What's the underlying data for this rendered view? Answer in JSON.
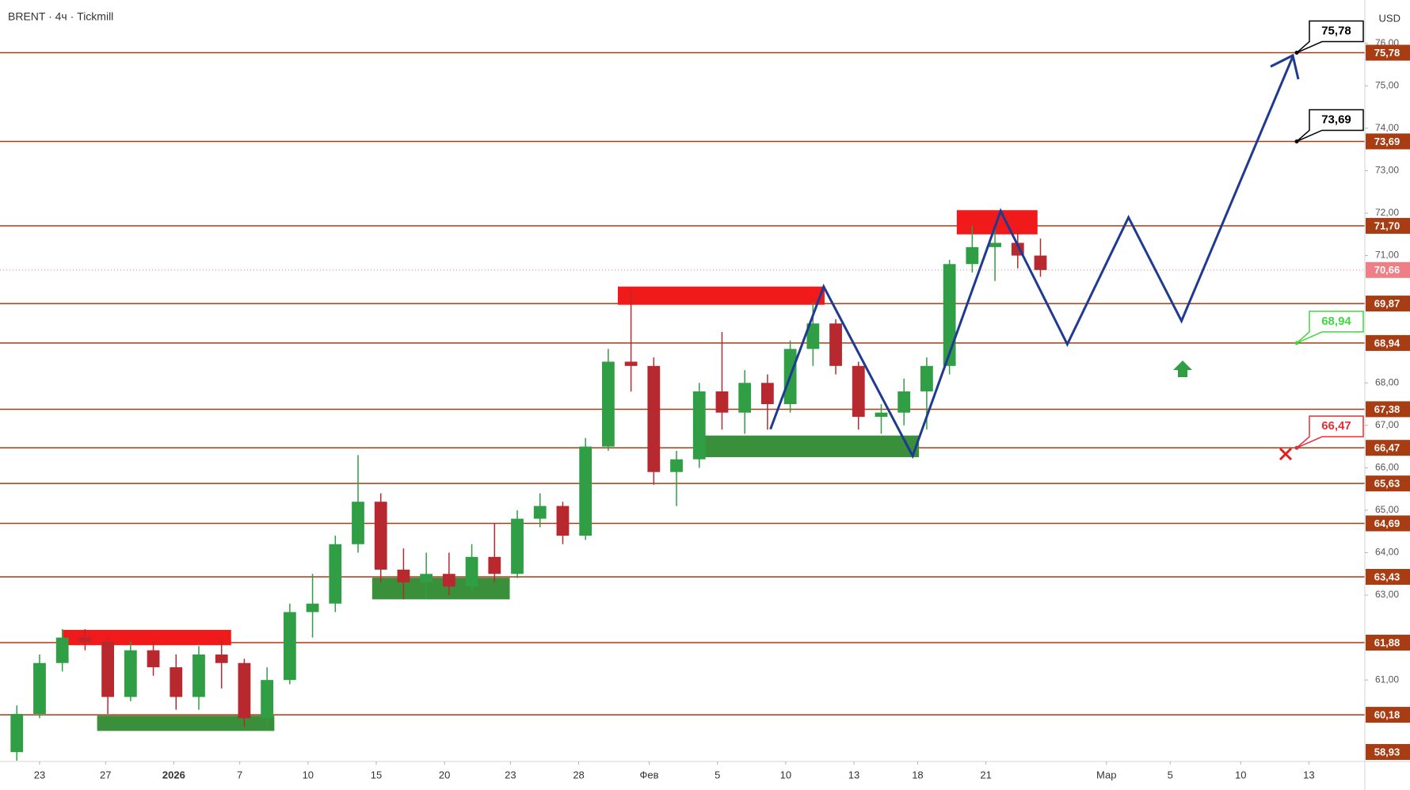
{
  "chart_data": {
    "type": "candlestick",
    "title": "BRENT · 4ч · Tickmill",
    "y_label": "USD",
    "xlim": [
      -1.74,
      58.26
    ],
    "ylim": [
      59.08,
      76.91
    ],
    "xticks": [
      {
        "value": 0,
        "label": "23"
      },
      {
        "value": 2.9,
        "label": "27"
      },
      {
        "value": 5.9,
        "label": "2026"
      },
      {
        "value": 8.8,
        "label": "7"
      },
      {
        "value": 11.8,
        "label": "10"
      },
      {
        "value": 14.8,
        "label": "15"
      },
      {
        "value": 17.8,
        "label": "20"
      },
      {
        "value": 20.7,
        "label": "23"
      },
      {
        "value": 23.7,
        "label": "28"
      },
      {
        "value": 26.8,
        "label": "Фев"
      },
      {
        "value": 29.8,
        "label": "5"
      },
      {
        "value": 32.8,
        "label": "10"
      },
      {
        "value": 35.8,
        "label": "13"
      },
      {
        "value": 38.6,
        "label": "18"
      },
      {
        "value": 41.6,
        "label": "21"
      },
      {
        "value": 46.9,
        "label": "Мар"
      },
      {
        "value": 49.7,
        "label": "5"
      },
      {
        "value": 52.8,
        "label": "10"
      },
      {
        "value": 55.8,
        "label": "13"
      }
    ],
    "yticks": [
      {
        "value": 76,
        "label": "76,00"
      },
      {
        "value": 75,
        "label": "75,00"
      },
      {
        "value": 74,
        "label": "74,00"
      },
      {
        "value": 73,
        "label": "73,00"
      },
      {
        "value": 72,
        "label": "72,00"
      },
      {
        "value": 71,
        "label": "71,00"
      },
      {
        "value": 68,
        "label": "68,00"
      },
      {
        "value": 67,
        "label": "67,00"
      },
      {
        "value": 66,
        "label": "66,00"
      },
      {
        "value": 65,
        "label": "65,00"
      },
      {
        "value": 64,
        "label": "64,00"
      },
      {
        "value": 63,
        "label": "63,00"
      },
      {
        "value": 61,
        "label": "61,00"
      }
    ],
    "up_color": "#2f9e44",
    "down_color": "#b8292f",
    "level_color": "#a83c12",
    "series": {
      "x": [
        -1,
        0,
        1,
        2,
        3,
        4,
        5,
        6,
        7,
        8,
        9,
        10,
        11,
        12,
        13,
        14,
        15,
        16,
        17,
        18,
        19,
        20,
        21,
        22,
        23,
        24,
        25,
        26,
        27,
        28,
        29,
        30,
        31,
        32,
        33,
        34,
        35,
        36,
        37,
        38,
        39,
        40,
        41,
        42,
        43,
        44
      ],
      "open": [
        59.3,
        60.2,
        61.4,
        62.0,
        61.9,
        60.6,
        61.7,
        61.3,
        60.6,
        61.6,
        61.4,
        60.1,
        61.0,
        62.6,
        62.8,
        64.2,
        65.2,
        63.6,
        63.3,
        63.5,
        63.2,
        63.9,
        63.5,
        64.8,
        65.1,
        64.4,
        66.5,
        68.5,
        68.4,
        65.9,
        66.2,
        67.8,
        67.3,
        68.0,
        67.5,
        68.8,
        69.4,
        68.4,
        67.2,
        67.3,
        67.8,
        68.4,
        70.8,
        71.2,
        71.3,
        71.0
      ],
      "high": [
        60.4,
        61.6,
        62.2,
        62.2,
        62.0,
        61.9,
        61.9,
        61.6,
        61.8,
        62.0,
        61.5,
        61.3,
        62.8,
        63.5,
        64.4,
        66.3,
        65.4,
        64.1,
        64.0,
        64.0,
        64.2,
        64.7,
        65.0,
        65.4,
        65.2,
        66.7,
        68.8,
        70.2,
        68.6,
        66.4,
        68.0,
        69.2,
        68.3,
        68.2,
        69.0,
        69.9,
        69.5,
        68.5,
        67.5,
        68.1,
        68.6,
        70.9,
        71.7,
        71.7,
        71.6,
        71.4
      ],
      "low": [
        59.1,
        60.1,
        61.2,
        61.7,
        60.2,
        60.5,
        61.1,
        60.3,
        60.3,
        60.8,
        59.9,
        59.9,
        60.9,
        62.0,
        62.6,
        64.0,
        63.3,
        62.9,
        62.9,
        63.0,
        63.1,
        63.3,
        63.4,
        64.6,
        64.2,
        64.3,
        66.4,
        67.8,
        65.6,
        65.1,
        66.0,
        66.9,
        66.8,
        66.9,
        67.3,
        68.4,
        68.2,
        66.9,
        66.8,
        67.0,
        66.9,
        68.2,
        70.6,
        70.4,
        70.7,
        70.5
      ],
      "close": [
        60.2,
        61.4,
        62.0,
        61.9,
        60.6,
        61.7,
        61.3,
        60.6,
        61.6,
        61.4,
        60.1,
        61.0,
        62.6,
        62.8,
        64.2,
        65.2,
        63.6,
        63.3,
        63.5,
        63.2,
        63.9,
        63.5,
        64.8,
        65.1,
        64.4,
        66.5,
        68.5,
        68.4,
        65.9,
        66.2,
        67.8,
        67.3,
        68.0,
        67.5,
        68.8,
        69.4,
        68.4,
        67.2,
        67.3,
        67.8,
        68.4,
        70.8,
        71.2,
        71.3,
        71.0,
        70.66
      ]
    },
    "levels": [
      {
        "value": 75.78,
        "label": "75,78"
      },
      {
        "value": 73.69,
        "label": "73,69"
      },
      {
        "value": 71.7,
        "label": "71,70"
      },
      {
        "value": 69.87,
        "label": "69,87"
      },
      {
        "value": 68.94,
        "label": "68,94"
      },
      {
        "value": 67.38,
        "label": "67,38"
      },
      {
        "value": 66.47,
        "label": "66,47"
      },
      {
        "value": 65.63,
        "label": "65,63"
      },
      {
        "value": 64.69,
        "label": "64,69"
      },
      {
        "value": 63.43,
        "label": "63,43"
      },
      {
        "value": 61.88,
        "label": "61,88"
      },
      {
        "value": 60.18,
        "label": "60,18"
      },
      {
        "value": 58.93,
        "label": "58,93"
      }
    ],
    "last_price": {
      "value": 70.66,
      "label": "70,66",
      "color": "#ef7f86"
    },
    "zones": [
      {
        "color": "#f01a1a",
        "x": [
          1.03,
          8.42
        ],
        "y": [
          61.82,
          62.18
        ]
      },
      {
        "color": "#3a8f3a",
        "x": [
          2.53,
          10.32
        ],
        "y": [
          59.8,
          60.16
        ]
      },
      {
        "color": "#3a8f3a",
        "x": [
          14.62,
          20.67
        ],
        "y": [
          62.9,
          63.41
        ]
      },
      {
        "color": "#f01a1a",
        "x": [
          25.42,
          34.51
        ],
        "y": [
          69.84,
          70.27
        ]
      },
      {
        "color": "#3a8f3a",
        "x": [
          29.09,
          38.66
        ],
        "y": [
          66.25,
          66.76
        ]
      },
      {
        "color": "#f01a1a",
        "x": [
          40.32,
          43.87
        ],
        "y": [
          71.5,
          72.07
        ]
      }
    ],
    "projection": {
      "color": "#1f3a93",
      "x": [
        32.13,
        34.47,
        38.38,
        42.25,
        45.18,
        47.87,
        50.2,
        55.1
      ],
      "y": [
        66.91,
        70.27,
        66.28,
        72.05,
        68.91,
        71.9,
        69.46,
        75.7
      ]
    },
    "callouts": [
      {
        "value": 75.78,
        "label": "75,78",
        "color": "#000000"
      },
      {
        "value": 73.69,
        "label": "73,69",
        "color": "#000000"
      },
      {
        "value": 68.94,
        "label": "68,94",
        "color": "#3fd83f"
      },
      {
        "value": 66.47,
        "label": "66,47",
        "color": "#e0303a"
      }
    ]
  }
}
